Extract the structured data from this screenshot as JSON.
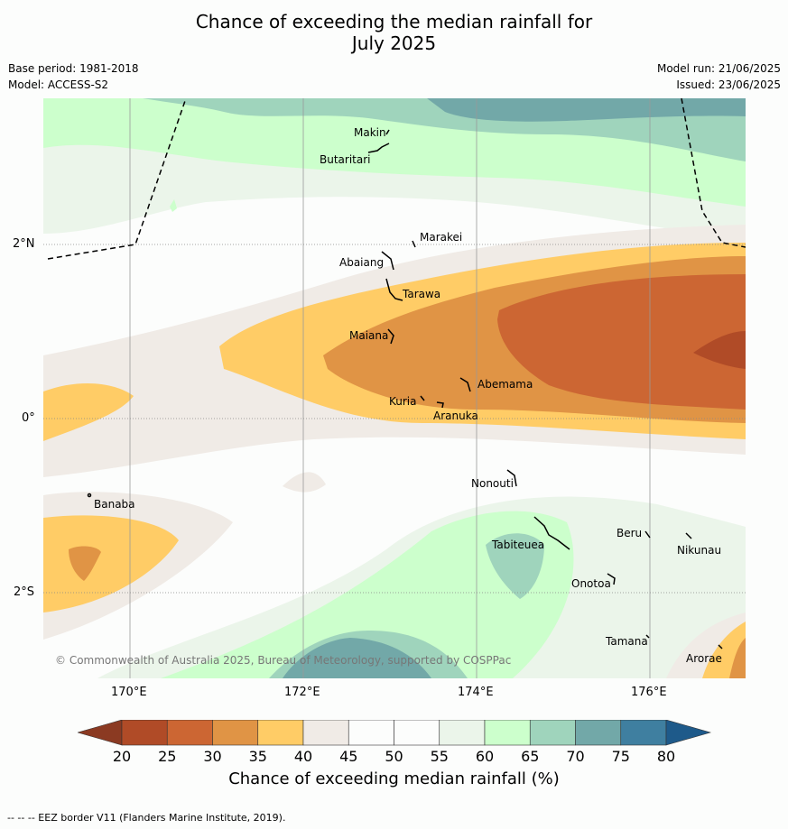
{
  "title": {
    "line1": "Chance of exceeding the median rainfall for",
    "line2": "July 2025"
  },
  "meta": {
    "base_period": "Base period: 1981-2018",
    "model": "Model: ACCESS-S2",
    "model_run": "Model run: 21/06/2025",
    "issued": "Issued: 23/06/2025"
  },
  "axes": {
    "lon_labels": [
      "170°E",
      "172°E",
      "174°E",
      "176°E"
    ],
    "lat_labels": [
      "2°N",
      "0°",
      "2°S"
    ]
  },
  "places": [
    "Makin",
    "Butaritari",
    "Marakei",
    "Abaiang",
    "Tarawa",
    "Maiana",
    "Abemama",
    "Kuria",
    "Aranuka",
    "Nonouti",
    "Banaba",
    "Tabiteuea",
    "Beru",
    "Nikunau",
    "Onotoa",
    "Tamana",
    "Arorae"
  ],
  "copyright": "© Commonwealth of Australia 2025, Bureau of Meteorology, supported by COSPPac",
  "colorbar": {
    "ticks": [
      "20",
      "25",
      "30",
      "35",
      "40",
      "45",
      "50",
      "55",
      "60",
      "65",
      "70",
      "75",
      "80"
    ],
    "colors": [
      "#b04b27",
      "#cc6633",
      "#e09445",
      "#ffcc66",
      "#f0ebe6",
      "#fcfdfc",
      "#fcfdfc",
      "#ebf5ea",
      "#ccffcc",
      "#9fd4bc",
      "#72a8a8",
      "#3f7fa0"
    ],
    "under_color": "#8b3a22",
    "over_color": "#1e5a8a",
    "title": "Chance of exceeding median rainfall (%)"
  },
  "footer": "--  --  -- EEZ border V11 (Flanders Marine Institute, 2019)."
}
